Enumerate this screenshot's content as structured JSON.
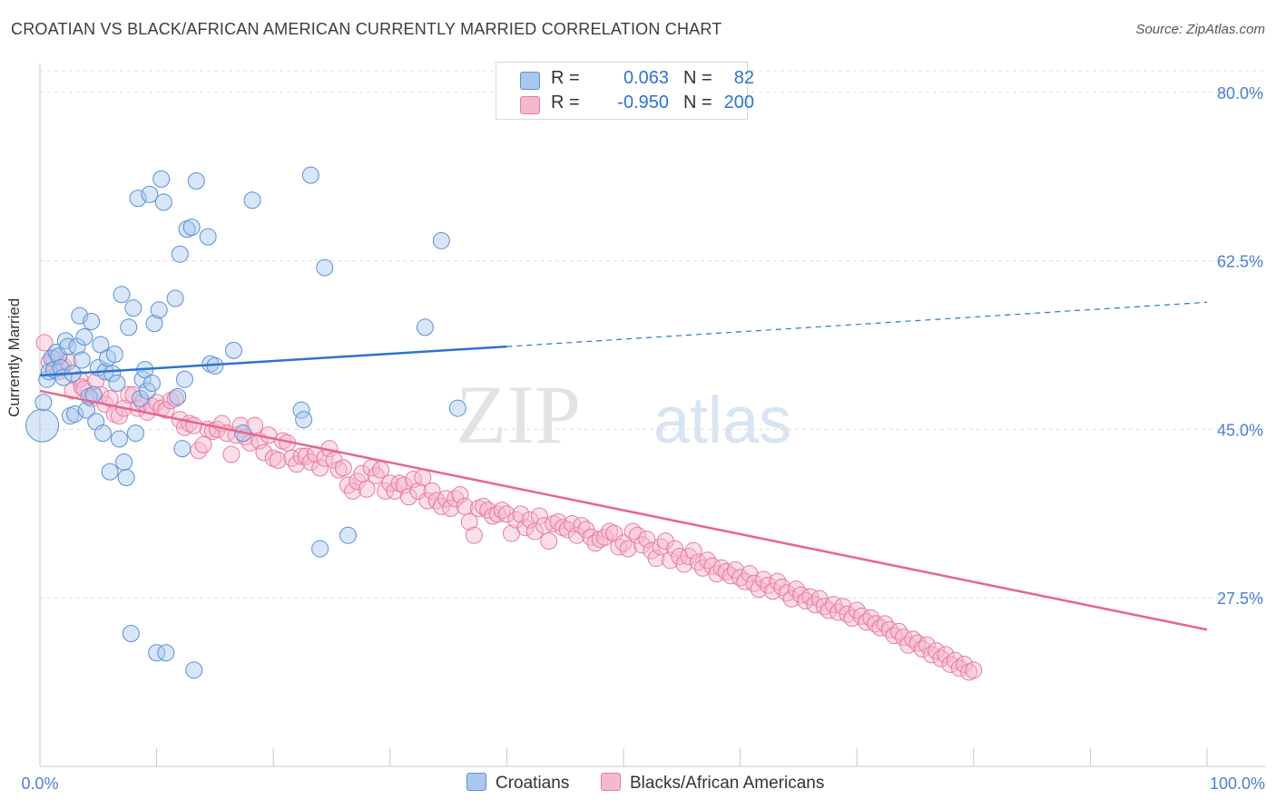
{
  "title": "CROATIAN VS BLACK/AFRICAN AMERICAN CURRENTLY MARRIED CORRELATION CHART",
  "source": "Source: ZipAtlas.com",
  "watermark": {
    "zip": "ZIP",
    "atlas": "atlas"
  },
  "legend": {
    "r_label": "R =",
    "n_label": "N =",
    "rows": [
      {
        "r": "0.063",
        "n": "82"
      },
      {
        "r": "-0.950",
        "n": "200"
      }
    ]
  },
  "colors": {
    "blue_fill": "#a9c8ee",
    "blue_stroke": "#5b8fd6",
    "blue_line": "#2e73d0",
    "pink_fill": "#f6b9cc",
    "pink_stroke": "#e77aa0",
    "pink_line": "#e6678f",
    "tick_text": "#4a7fd0"
  },
  "chart_data": {
    "type": "scatter",
    "title": "CROATIAN VS BLACK/AFRICAN AMERICAN CURRENTLY MARRIED CORRELATION CHART",
    "xlabel": "",
    "ylabel": "Currently Married",
    "xlim": [
      0,
      100
    ],
    "ylim": [
      10,
      83
    ],
    "x_tick_labels": [
      "0.0%",
      "100.0%"
    ],
    "y_ticks": [
      27.5,
      45.0,
      62.5,
      80.0
    ],
    "y_tick_labels": [
      "27.5%",
      "45.0%",
      "62.5%",
      "80.0%"
    ],
    "grid": true,
    "legend_position": "top-center",
    "series": [
      {
        "name": "Croatians",
        "r": 0.063,
        "n": 82,
        "trend": {
          "x": [
            0,
            40,
            100
          ],
          "y": [
            50.6,
            53.6,
            58.2
          ],
          "solid_until": 40
        },
        "points": [
          [
            0.2,
            45.4
          ],
          [
            0.3,
            47.8
          ],
          [
            0.6,
            50.2
          ],
          [
            0.8,
            51.0
          ],
          [
            1.0,
            52.4
          ],
          [
            1.2,
            51.2
          ],
          [
            1.4,
            53.0
          ],
          [
            1.6,
            52.6
          ],
          [
            1.8,
            51.4
          ],
          [
            2.0,
            50.4
          ],
          [
            2.2,
            54.2
          ],
          [
            2.4,
            53.6
          ],
          [
            2.6,
            46.4
          ],
          [
            2.8,
            50.8
          ],
          [
            3.0,
            46.6
          ],
          [
            3.2,
            53.6
          ],
          [
            3.4,
            56.8
          ],
          [
            3.6,
            52.2
          ],
          [
            3.8,
            54.6
          ],
          [
            4.0,
            47.0
          ],
          [
            4.2,
            48.4
          ],
          [
            4.4,
            56.2
          ],
          [
            4.6,
            48.6
          ],
          [
            4.8,
            45.8
          ],
          [
            5.0,
            51.4
          ],
          [
            5.2,
            53.8
          ],
          [
            5.4,
            44.6
          ],
          [
            5.6,
            51.0
          ],
          [
            5.8,
            52.4
          ],
          [
            6.0,
            40.6
          ],
          [
            6.2,
            50.8
          ],
          [
            6.4,
            52.8
          ],
          [
            6.6,
            49.8
          ],
          [
            6.8,
            44.0
          ],
          [
            7.0,
            59.0
          ],
          [
            7.2,
            41.6
          ],
          [
            7.4,
            40.0
          ],
          [
            7.6,
            55.6
          ],
          [
            7.8,
            23.8
          ],
          [
            8.0,
            57.6
          ],
          [
            8.2,
            44.6
          ],
          [
            8.4,
            69.0
          ],
          [
            8.6,
            48.2
          ],
          [
            8.8,
            50.2
          ],
          [
            9.0,
            51.2
          ],
          [
            9.2,
            49.0
          ],
          [
            9.4,
            69.4
          ],
          [
            9.6,
            49.8
          ],
          [
            9.8,
            56.0
          ],
          [
            10.0,
            21.8
          ],
          [
            10.2,
            57.4
          ],
          [
            10.4,
            71.0
          ],
          [
            10.6,
            68.6
          ],
          [
            10.8,
            21.8
          ],
          [
            11.6,
            58.6
          ],
          [
            11.8,
            48.4
          ],
          [
            12.0,
            63.2
          ],
          [
            12.2,
            43.0
          ],
          [
            12.4,
            50.2
          ],
          [
            12.6,
            65.8
          ],
          [
            13.0,
            66.0
          ],
          [
            13.2,
            20.0
          ],
          [
            13.4,
            70.8
          ],
          [
            14.4,
            65.0
          ],
          [
            14.6,
            51.8
          ],
          [
            15.0,
            51.6
          ],
          [
            16.6,
            53.2
          ],
          [
            17.4,
            44.6
          ],
          [
            18.2,
            68.8
          ],
          [
            22.4,
            47.0
          ],
          [
            22.6,
            46.0
          ],
          [
            23.2,
            71.4
          ],
          [
            24.0,
            32.6
          ],
          [
            24.4,
            61.8
          ],
          [
            26.4,
            34.0
          ],
          [
            33.0,
            55.6
          ],
          [
            34.4,
            64.6
          ],
          [
            35.8,
            47.2
          ]
        ]
      },
      {
        "name": "Blacks/African Americans",
        "r": -0.95,
        "n": 200,
        "trend": {
          "x": [
            0,
            100
          ],
          "y": [
            49.0,
            24.2
          ]
        },
        "points": [
          [
            0.4,
            54.0
          ],
          [
            0.8,
            52.0
          ],
          [
            1.2,
            52.4
          ],
          [
            1.6,
            51.0
          ],
          [
            2.0,
            51.6
          ],
          [
            2.4,
            52.0
          ],
          [
            2.8,
            49.0
          ],
          [
            3.4,
            50.2
          ],
          [
            3.6,
            49.4
          ],
          [
            3.8,
            49.2
          ],
          [
            4.4,
            48.2
          ],
          [
            4.8,
            50.0
          ],
          [
            5.2,
            48.6
          ],
          [
            5.6,
            47.6
          ],
          [
            6.0,
            48.2
          ],
          [
            6.4,
            46.6
          ],
          [
            6.8,
            46.4
          ],
          [
            7.2,
            47.2
          ],
          [
            7.6,
            48.6
          ],
          [
            8.0,
            48.6
          ],
          [
            8.4,
            47.2
          ],
          [
            8.8,
            47.8
          ],
          [
            9.2,
            46.8
          ],
          [
            9.6,
            47.4
          ],
          [
            10.0,
            47.8
          ],
          [
            10.4,
            47.2
          ],
          [
            10.8,
            47.0
          ],
          [
            11.2,
            48.0
          ],
          [
            11.6,
            48.2
          ],
          [
            12.0,
            46.0
          ],
          [
            12.4,
            45.2
          ],
          [
            12.8,
            45.6
          ],
          [
            13.2,
            45.4
          ],
          [
            13.6,
            42.8
          ],
          [
            14.0,
            43.4
          ],
          [
            14.4,
            45.0
          ],
          [
            14.8,
            44.8
          ],
          [
            15.2,
            45.0
          ],
          [
            15.6,
            45.6
          ],
          [
            16.0,
            44.6
          ],
          [
            16.4,
            42.4
          ],
          [
            16.8,
            44.4
          ],
          [
            17.2,
            45.4
          ],
          [
            17.6,
            44.2
          ],
          [
            18.0,
            43.6
          ],
          [
            18.4,
            45.4
          ],
          [
            18.8,
            43.8
          ],
          [
            19.2,
            42.6
          ],
          [
            19.6,
            44.4
          ],
          [
            20.0,
            42.0
          ],
          [
            20.4,
            41.8
          ],
          [
            20.8,
            43.8
          ],
          [
            21.2,
            43.6
          ],
          [
            21.6,
            42.0
          ],
          [
            22.0,
            41.4
          ],
          [
            22.4,
            42.2
          ],
          [
            22.8,
            42.2
          ],
          [
            23.2,
            41.6
          ],
          [
            23.6,
            42.4
          ],
          [
            24.0,
            41.0
          ],
          [
            24.4,
            42.0
          ],
          [
            24.8,
            43.0
          ],
          [
            25.2,
            41.8
          ],
          [
            25.6,
            40.8
          ],
          [
            26.0,
            41.0
          ],
          [
            26.4,
            39.2
          ],
          [
            26.8,
            38.6
          ],
          [
            27.2,
            39.6
          ],
          [
            27.6,
            40.4
          ],
          [
            28.0,
            38.8
          ],
          [
            28.4,
            41.0
          ],
          [
            28.8,
            40.2
          ],
          [
            29.2,
            40.8
          ],
          [
            29.6,
            38.6
          ],
          [
            30.0,
            39.4
          ],
          [
            30.4,
            38.6
          ],
          [
            30.8,
            39.4
          ],
          [
            31.2,
            39.2
          ],
          [
            31.6,
            38.0
          ],
          [
            32.0,
            39.8
          ],
          [
            32.4,
            38.6
          ],
          [
            32.8,
            40.0
          ],
          [
            33.2,
            37.6
          ],
          [
            33.6,
            38.6
          ],
          [
            34.0,
            37.6
          ],
          [
            34.4,
            37.0
          ],
          [
            34.8,
            37.8
          ],
          [
            35.2,
            36.8
          ],
          [
            35.6,
            37.8
          ],
          [
            36.0,
            38.2
          ],
          [
            36.4,
            37.0
          ],
          [
            36.8,
            35.4
          ],
          [
            37.2,
            34.0
          ],
          [
            37.6,
            36.8
          ],
          [
            38.0,
            37.0
          ],
          [
            38.4,
            36.6
          ],
          [
            38.8,
            36.0
          ],
          [
            39.2,
            36.2
          ],
          [
            39.6,
            36.6
          ],
          [
            40.0,
            36.2
          ],
          [
            40.4,
            34.2
          ],
          [
            40.8,
            35.6
          ],
          [
            41.2,
            36.2
          ],
          [
            41.6,
            34.8
          ],
          [
            42.0,
            35.6
          ],
          [
            42.4,
            34.4
          ],
          [
            42.8,
            36.0
          ],
          [
            43.2,
            35.0
          ],
          [
            43.6,
            33.4
          ],
          [
            44.0,
            35.2
          ],
          [
            44.4,
            35.4
          ],
          [
            44.8,
            34.8
          ],
          [
            45.2,
            34.6
          ],
          [
            45.6,
            35.2
          ],
          [
            46.0,
            34.0
          ],
          [
            46.4,
            35.0
          ],
          [
            46.8,
            34.6
          ],
          [
            47.2,
            33.8
          ],
          [
            47.6,
            33.2
          ],
          [
            48.0,
            33.6
          ],
          [
            48.4,
            33.8
          ],
          [
            48.8,
            34.4
          ],
          [
            49.2,
            34.2
          ],
          [
            49.6,
            32.8
          ],
          [
            50.0,
            33.2
          ],
          [
            50.4,
            32.6
          ],
          [
            50.8,
            34.4
          ],
          [
            51.2,
            34.0
          ],
          [
            51.6,
            33.0
          ],
          [
            52.0,
            33.6
          ],
          [
            52.4,
            32.4
          ],
          [
            52.8,
            31.6
          ],
          [
            53.2,
            32.8
          ],
          [
            53.6,
            33.4
          ],
          [
            54.0,
            31.4
          ],
          [
            54.4,
            32.6
          ],
          [
            54.8,
            31.8
          ],
          [
            55.2,
            31.0
          ],
          [
            55.6,
            31.8
          ],
          [
            56.0,
            32.4
          ],
          [
            56.4,
            31.2
          ],
          [
            56.8,
            30.6
          ],
          [
            57.2,
            31.4
          ],
          [
            57.6,
            30.8
          ],
          [
            58.0,
            30.0
          ],
          [
            58.4,
            30.6
          ],
          [
            58.8,
            30.2
          ],
          [
            59.2,
            29.8
          ],
          [
            59.6,
            30.4
          ],
          [
            60.0,
            29.6
          ],
          [
            60.4,
            29.2
          ],
          [
            60.8,
            30.0
          ],
          [
            61.2,
            29.0
          ],
          [
            61.6,
            28.4
          ],
          [
            62.0,
            29.4
          ],
          [
            62.4,
            28.8
          ],
          [
            62.8,
            28.2
          ],
          [
            63.2,
            29.2
          ],
          [
            63.6,
            28.6
          ],
          [
            64.0,
            28.0
          ],
          [
            64.4,
            27.4
          ],
          [
            64.8,
            28.4
          ],
          [
            65.2,
            27.8
          ],
          [
            65.6,
            27.2
          ],
          [
            66.0,
            27.6
          ],
          [
            66.4,
            26.8
          ],
          [
            66.8,
            27.4
          ],
          [
            67.2,
            26.6
          ],
          [
            67.6,
            26.2
          ],
          [
            68.0,
            26.8
          ],
          [
            68.4,
            26.0
          ],
          [
            68.8,
            26.6
          ],
          [
            69.2,
            25.8
          ],
          [
            69.6,
            25.4
          ],
          [
            70.0,
            26.2
          ],
          [
            70.4,
            25.6
          ],
          [
            70.8,
            25.0
          ],
          [
            71.2,
            25.4
          ],
          [
            71.6,
            24.8
          ],
          [
            72.0,
            24.4
          ],
          [
            72.4,
            24.8
          ],
          [
            72.8,
            24.2
          ],
          [
            73.2,
            23.6
          ],
          [
            73.6,
            24.0
          ],
          [
            74.0,
            23.4
          ],
          [
            74.4,
            22.6
          ],
          [
            74.8,
            23.2
          ],
          [
            75.2,
            22.8
          ],
          [
            75.6,
            22.2
          ],
          [
            76.0,
            22.6
          ],
          [
            76.4,
            21.6
          ],
          [
            76.8,
            22.0
          ],
          [
            77.2,
            21.2
          ],
          [
            77.6,
            21.6
          ],
          [
            78.0,
            20.6
          ],
          [
            78.4,
            21.0
          ],
          [
            78.8,
            20.2
          ],
          [
            79.2,
            20.6
          ],
          [
            79.6,
            19.8
          ],
          [
            80.0,
            20.0
          ]
        ]
      }
    ]
  },
  "bottom_legend": [
    "Croatians",
    "Blacks/African Americans"
  ]
}
